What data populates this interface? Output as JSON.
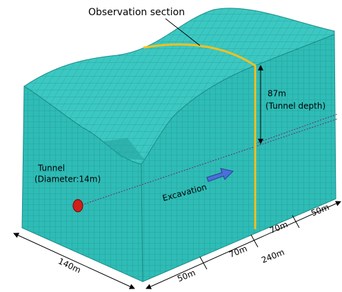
{
  "observation_section": "Observation section",
  "depth": {
    "value": "87m",
    "note": "(Tunnel depth)"
  },
  "tunnel": {
    "label": "Tunnel",
    "diameter": "(Diameter:14m)"
  },
  "excavation": "Excavation",
  "dimensions": {
    "width": "140m",
    "total_length": "240m",
    "segments": [
      "50m",
      "70m",
      "70m",
      "50m"
    ]
  }
}
